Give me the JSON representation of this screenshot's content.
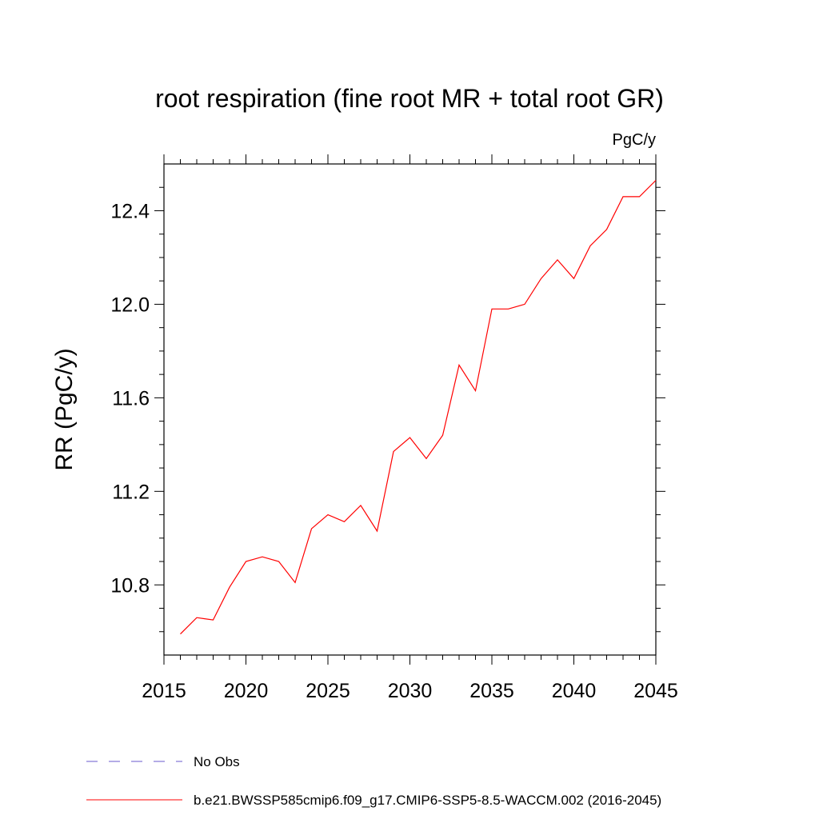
{
  "chart_data": {
    "type": "line",
    "title": "root respiration (fine root MR + total root GR)",
    "units_label": "PgC/y",
    "xlabel": "",
    "ylabel": "RR  (PgC/y)",
    "xlim": [
      2015,
      2045
    ],
    "ylim": [
      10.5,
      12.6
    ],
    "x_ticks": [
      2015,
      2020,
      2025,
      2030,
      2035,
      2040,
      2045
    ],
    "x_tick_labels": [
      "2015",
      "2020",
      "2025",
      "2030",
      "2035",
      "2040",
      "2045"
    ],
    "y_ticks": [
      10.8,
      11.2,
      11.6,
      12.0,
      12.4
    ],
    "y_tick_labels": [
      "10.8",
      "11.2",
      "11.6",
      "12.0",
      "12.4"
    ],
    "grid": false,
    "legend_placement": "bottom",
    "series": [
      {
        "name": "No Obs",
        "color": "#6a5acd",
        "dash": "dashed",
        "x": [],
        "values": []
      },
      {
        "name": "b.e21.BWSSP585cmip6.f09_g17.CMIP6-SSP5-8.5-WACCM.002 (2016-2045)",
        "color": "#ff0000",
        "dash": "solid",
        "x": [
          2016,
          2017,
          2018,
          2019,
          2020,
          2021,
          2022,
          2023,
          2024,
          2025,
          2026,
          2027,
          2028,
          2029,
          2030,
          2031,
          2032,
          2033,
          2034,
          2035,
          2036,
          2037,
          2038,
          2039,
          2040,
          2041,
          2042,
          2043,
          2044,
          2045
        ],
        "values": [
          10.59,
          10.66,
          10.65,
          10.79,
          10.9,
          10.92,
          10.9,
          10.81,
          11.04,
          11.1,
          11.07,
          11.14,
          11.03,
          11.37,
          11.43,
          11.34,
          11.44,
          11.74,
          11.63,
          11.98,
          11.98,
          12.0,
          12.11,
          12.19,
          12.11,
          12.25,
          12.32,
          12.46,
          12.46,
          12.53
        ]
      }
    ]
  }
}
